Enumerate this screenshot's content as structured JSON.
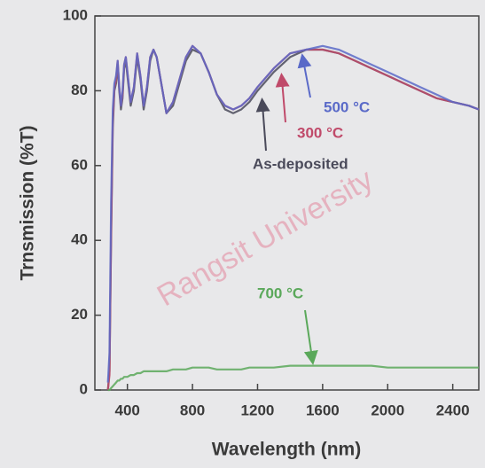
{
  "chart_data": {
    "type": "line",
    "xlabel": "Wavelength (nm)",
    "ylabel": "Trnsmission (%T)",
    "watermark": "Rangsit University",
    "x": [
      280,
      290,
      300,
      310,
      320,
      330,
      340,
      350,
      360,
      370,
      380,
      390,
      400,
      420,
      440,
      460,
      480,
      500,
      520,
      540,
      560,
      580,
      600,
      640,
      680,
      720,
      760,
      800,
      850,
      900,
      950,
      1000,
      1050,
      1100,
      1150,
      1200,
      1300,
      1400,
      1500,
      1600,
      1700,
      1800,
      1900,
      2000,
      2100,
      2200,
      2300,
      2400,
      2500,
      2560
    ],
    "series": [
      {
        "name": "As-deposited",
        "color": "#4a4a5a",
        "values": [
          0,
          5,
          40,
          70,
          80,
          82,
          87,
          80,
          75,
          78,
          86,
          88,
          84,
          76,
          80,
          89,
          83,
          75,
          80,
          88,
          91,
          89,
          84,
          74,
          76,
          82,
          88,
          91,
          90,
          85,
          79,
          75,
          74,
          75,
          77,
          80,
          85,
          89,
          91,
          91,
          90,
          88,
          86,
          84,
          82,
          80,
          78,
          77,
          76,
          75
        ]
      },
      {
        "name": "300 °C",
        "color": "#c04a6a",
        "values": [
          0,
          4,
          42,
          72,
          81,
          83,
          88,
          81,
          76,
          79,
          87,
          89,
          85,
          77,
          81,
          90,
          84,
          76,
          81,
          89,
          91,
          89,
          84,
          74,
          77,
          83,
          89,
          92,
          90,
          85,
          79,
          76,
          75,
          76,
          78,
          81,
          86,
          90,
          91,
          91,
          90,
          88,
          86,
          84,
          82,
          80,
          78,
          77,
          76,
          75
        ]
      },
      {
        "name": "500 °C",
        "color": "#5a6ac8",
        "values": [
          2,
          10,
          50,
          75,
          82,
          84,
          88,
          81,
          76,
          80,
          87,
          89,
          85,
          77,
          81,
          90,
          84,
          76,
          81,
          89,
          91,
          89,
          84,
          74,
          77,
          83,
          89,
          92,
          90,
          85,
          79,
          76,
          75,
          76,
          78,
          81,
          86,
          90,
          91,
          92,
          91,
          89,
          87,
          85,
          83,
          81,
          79,
          77,
          76,
          75
        ]
      },
      {
        "name": "700 °C",
        "color": "#5aa85a",
        "values": [
          0,
          0,
          0.5,
          1,
          1.5,
          2,
          2.5,
          2.5,
          3,
          3,
          3.5,
          3.5,
          3.5,
          4,
          4,
          4.5,
          4.5,
          5,
          5,
          5,
          5,
          5,
          5,
          5,
          5.5,
          5.5,
          5.5,
          6,
          6,
          6,
          5.5,
          5.5,
          5.5,
          5.5,
          6,
          6,
          6,
          6.5,
          6.5,
          6.5,
          6.5,
          6.5,
          6.5,
          6,
          6,
          6,
          6,
          6,
          6,
          6
        ]
      }
    ],
    "annotations": [
      "500 °C",
      "300 °C",
      "As-deposited",
      "700 °C"
    ],
    "xlim": [
      200,
      2560
    ],
    "ylim": [
      0,
      100
    ],
    "xticks": [
      400,
      800,
      1200,
      1600,
      2000,
      2400
    ],
    "yticks": [
      0,
      20,
      40,
      60,
      80,
      100
    ]
  }
}
